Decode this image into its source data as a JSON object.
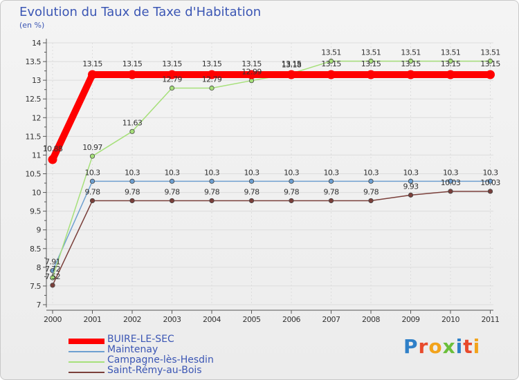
{
  "chart_data": {
    "type": "line",
    "title": "Evolution du Taux de Taxe d'Habitation",
    "ylabel": "(en %)",
    "xlabel": "",
    "ylim": [
      7,
      14
    ],
    "yticks": [
      "7",
      "7.5",
      "8",
      "8.5",
      "9",
      "9.5",
      "10",
      "10.5",
      "11",
      "11.5",
      "12",
      "12.5",
      "13",
      "13.5",
      "14"
    ],
    "categories": [
      "2000",
      "2001",
      "2002",
      "2003",
      "2004",
      "2005",
      "2006",
      "2007",
      "2008",
      "2009",
      "2010",
      "2011"
    ],
    "series": [
      {
        "name": "BUIRE-LE-SEC",
        "color": "#ff0000",
        "values": [
          10.88,
          13.15,
          13.15,
          13.15,
          13.15,
          13.15,
          13.15,
          13.15,
          13.15,
          13.15,
          13.15,
          13.15
        ],
        "labels": [
          "10.88",
          "13.15",
          "13.15",
          "13.15",
          "13.15",
          "13.15",
          "13.15",
          "13.15",
          "13.15",
          "13.15",
          "13.15",
          "13.15"
        ]
      },
      {
        "name": "Maintenay",
        "color": "#6d9fd0",
        "values": [
          7.91,
          10.3,
          10.3,
          10.3,
          10.3,
          10.3,
          10.3,
          10.3,
          10.3,
          10.3,
          10.3,
          10.3
        ],
        "labels": [
          "7.91",
          "10.3",
          "10.3",
          "10.3",
          "10.3",
          "10.3",
          "10.3",
          "10.3",
          "10.3",
          "10.3",
          "10.3",
          "10.3"
        ]
      },
      {
        "name": "Campagne-lès-Hesdin",
        "color": "#a6e07a",
        "values": [
          7.72,
          10.97,
          11.63,
          12.79,
          12.79,
          12.99,
          13.18,
          13.51,
          13.51,
          13.51,
          13.51,
          13.51
        ],
        "labels": [
          "7.72",
          "10.97",
          "11.63",
          "12.79",
          "12.79",
          "12.99",
          "13.18",
          "13.51",
          "13.51",
          "13.51",
          "13.51",
          "13.51"
        ]
      },
      {
        "name": "Saint-Rémy-au-Bois",
        "color": "#7a3f3a",
        "values": [
          7.52,
          9.78,
          9.78,
          9.78,
          9.78,
          9.78,
          9.78,
          9.78,
          9.78,
          9.93,
          10.03,
          10.03
        ],
        "labels": [
          "7.52",
          "9.78",
          "9.78",
          "9.78",
          "9.78",
          "9.78",
          "9.78",
          "9.78",
          "9.78",
          "9.93",
          "10.03",
          "10.03"
        ]
      }
    ]
  },
  "logo": {
    "text": "Proxiti"
  }
}
